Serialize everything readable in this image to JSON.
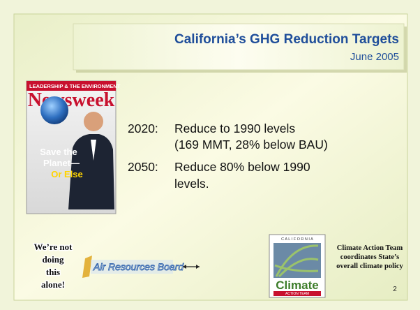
{
  "title": "California’s GHG Reduction Targets",
  "subtitle": "June 2005",
  "cover": {
    "header": "LEADERSHIP & THE ENVIRONMENT",
    "masthead": "Newsweek",
    "headline": [
      "Save the",
      "Planet—",
      "Or Else"
    ]
  },
  "targets": [
    {
      "year": "2020:",
      "text": [
        "Reduce to 1990 levels",
        "(169 MMT, 28% below BAU)"
      ]
    },
    {
      "year": "2050:",
      "text": [
        "Reduce 80% below 1990",
        "levels."
      ]
    }
  ],
  "note": [
    "We’re not",
    "doing",
    "this",
    "alone!"
  ],
  "partner": "Air Resources Board",
  "logo": {
    "top": "C A L I F O R N I A",
    "name": "Climate",
    "bottom": "ACTION TEAM"
  },
  "caption": [
    "Climate Action Team",
    "coordinates State’s",
    "overall climate policy"
  ],
  "page": "2"
}
